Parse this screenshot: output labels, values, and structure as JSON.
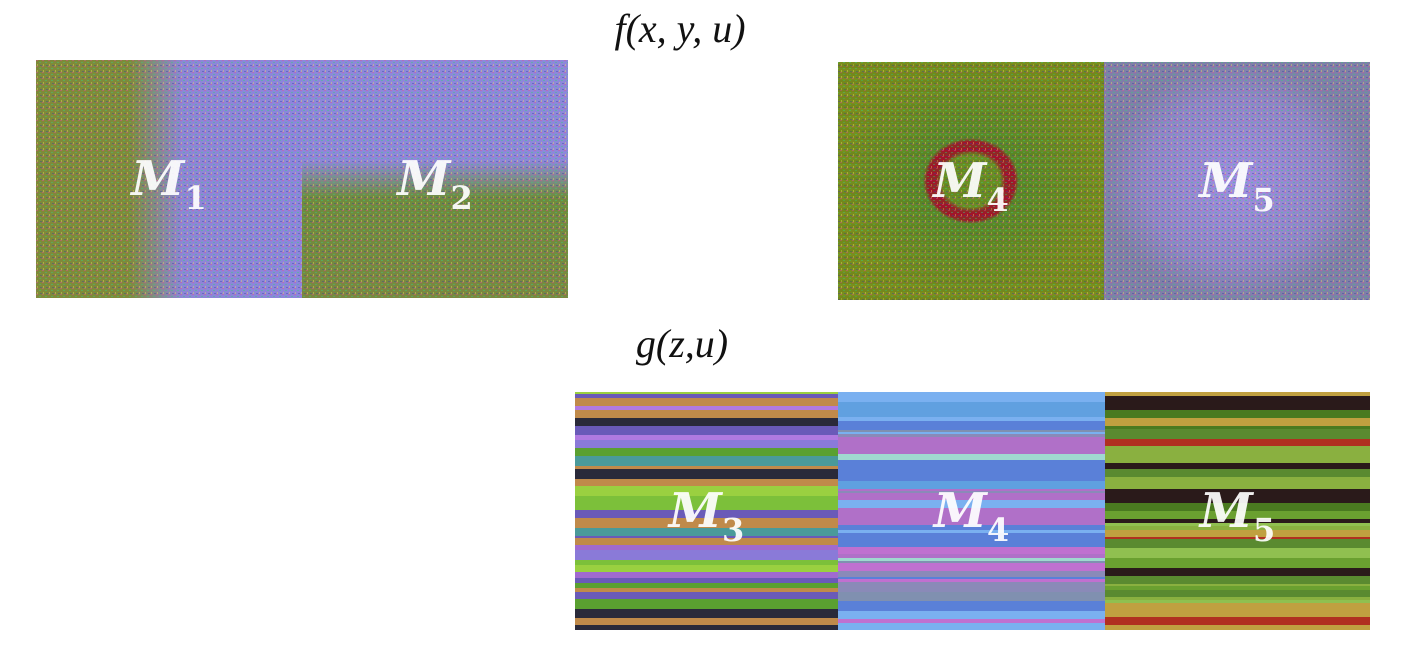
{
  "top": {
    "title": "f(x, y, u)",
    "panels": [
      {
        "label": "M",
        "subscript": "1"
      },
      {
        "label": "M",
        "subscript": "2"
      },
      {
        "label": "M",
        "subscript": "4"
      },
      {
        "label": "M",
        "subscript": "5"
      }
    ]
  },
  "bottom": {
    "title": "g(z,u)",
    "panels": [
      {
        "label": "M",
        "subscript": "3"
      },
      {
        "label": "M",
        "subscript": "4"
      },
      {
        "label": "M",
        "subscript": "5"
      }
    ]
  }
}
